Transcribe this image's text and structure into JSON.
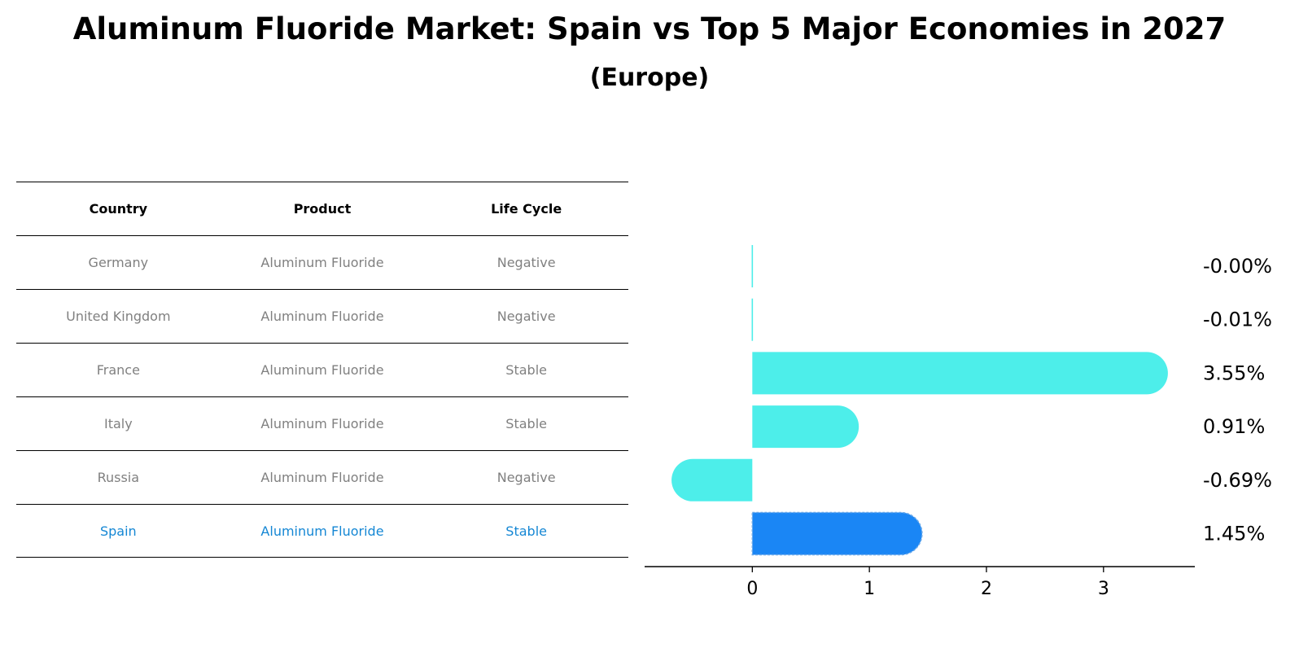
{
  "header": {
    "title": "Aluminum Fluoride Market: Spain vs Top 5 Major Economies in 2027",
    "subtitle": "(Europe)"
  },
  "table": {
    "columns": [
      "Country",
      "Product",
      "Life Cycle"
    ],
    "rows": [
      {
        "country": "Germany",
        "product": "Aluminum Fluoride",
        "life_cycle": "Negative"
      },
      {
        "country": "United Kingdom",
        "product": "Aluminum Fluoride",
        "life_cycle": "Negative"
      },
      {
        "country": "France",
        "product": "Aluminum Fluoride",
        "life_cycle": "Stable"
      },
      {
        "country": "Italy",
        "product": "Aluminum Fluoride",
        "life_cycle": "Stable"
      },
      {
        "country": "Russia",
        "product": "Aluminum Fluoride",
        "life_cycle": "Negative"
      },
      {
        "country": "Spain",
        "product": "Aluminum Fluoride",
        "life_cycle": "Stable"
      }
    ],
    "highlight_row": "Spain"
  },
  "chart_data": {
    "type": "bar",
    "orientation": "horizontal",
    "categories": [
      "Germany",
      "United Kingdom",
      "France",
      "Italy",
      "Russia",
      "Spain"
    ],
    "values": [
      -0.0,
      -0.01,
      3.55,
      0.91,
      -0.69,
      1.45
    ],
    "data_labels": [
      "-0.00%",
      "-0.01%",
      "3.55%",
      "0.91%",
      "-0.69%",
      "1.45%"
    ],
    "xticks": [
      0,
      1,
      2,
      3
    ],
    "xlim": [
      -0.92,
      3.78
    ],
    "grid": false,
    "colors": {
      "default": "#4deeea",
      "highlight": "#1a86f5"
    },
    "highlight": "Spain"
  },
  "colors": {
    "highlight_text": "#1587d4",
    "muted_text": "#808080"
  }
}
